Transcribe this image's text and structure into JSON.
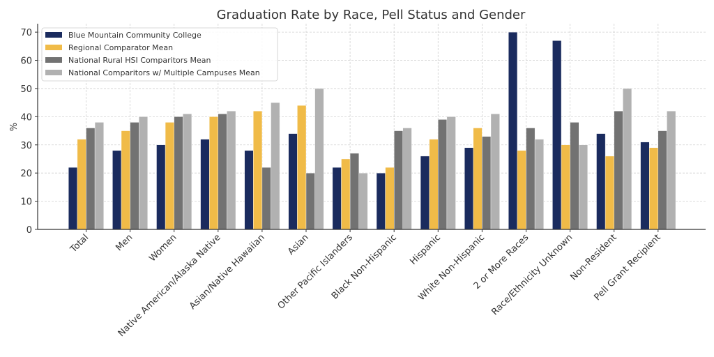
{
  "chart_data": {
    "type": "bar",
    "title": "Graduation Rate by Race, Pell Status and Gender",
    "xlabel": "",
    "ylabel": "%",
    "ylim": [
      0,
      73
    ],
    "yticks": [
      0,
      10,
      20,
      30,
      40,
      50,
      60,
      70
    ],
    "grid": true,
    "legend_position": "top-left",
    "categories": [
      "Total",
      "Men",
      "Women",
      "Native American/Alaska Native",
      "Asian/Native Hawaiian",
      "Asian",
      "Other Pacific Islanders",
      "Black Non-Hispanic",
      "Hispanic",
      "White Non-Hispanic",
      "2 or More Races",
      "Race/Ethnicity Unknown",
      "Non-Resident",
      "Pell Grant Recipient"
    ],
    "series": [
      {
        "name": "Blue Mountain Community College",
        "color": "#1a2b5e",
        "values": [
          22,
          28,
          30,
          32,
          28,
          34,
          22,
          20,
          26,
          29,
          70,
          67,
          34,
          31
        ]
      },
      {
        "name": "Regional Comparator Mean",
        "color": "#f0bb48",
        "values": [
          32,
          35,
          38,
          40,
          42,
          44,
          25,
          22,
          32,
          36,
          28,
          30,
          26,
          29
        ]
      },
      {
        "name": "National Rural HSI Comparitors Mean",
        "color": "#727272",
        "values": [
          36,
          38,
          40,
          41,
          22,
          20,
          27,
          35,
          39,
          33,
          36,
          38,
          42,
          35
        ]
      },
      {
        "name": "National Comparitors w/ Multiple Campuses Mean",
        "color": "#b1b1b1",
        "values": [
          38,
          40,
          41,
          42,
          45,
          50,
          20,
          36,
          40,
          41,
          32,
          30,
          50,
          42
        ]
      }
    ]
  }
}
